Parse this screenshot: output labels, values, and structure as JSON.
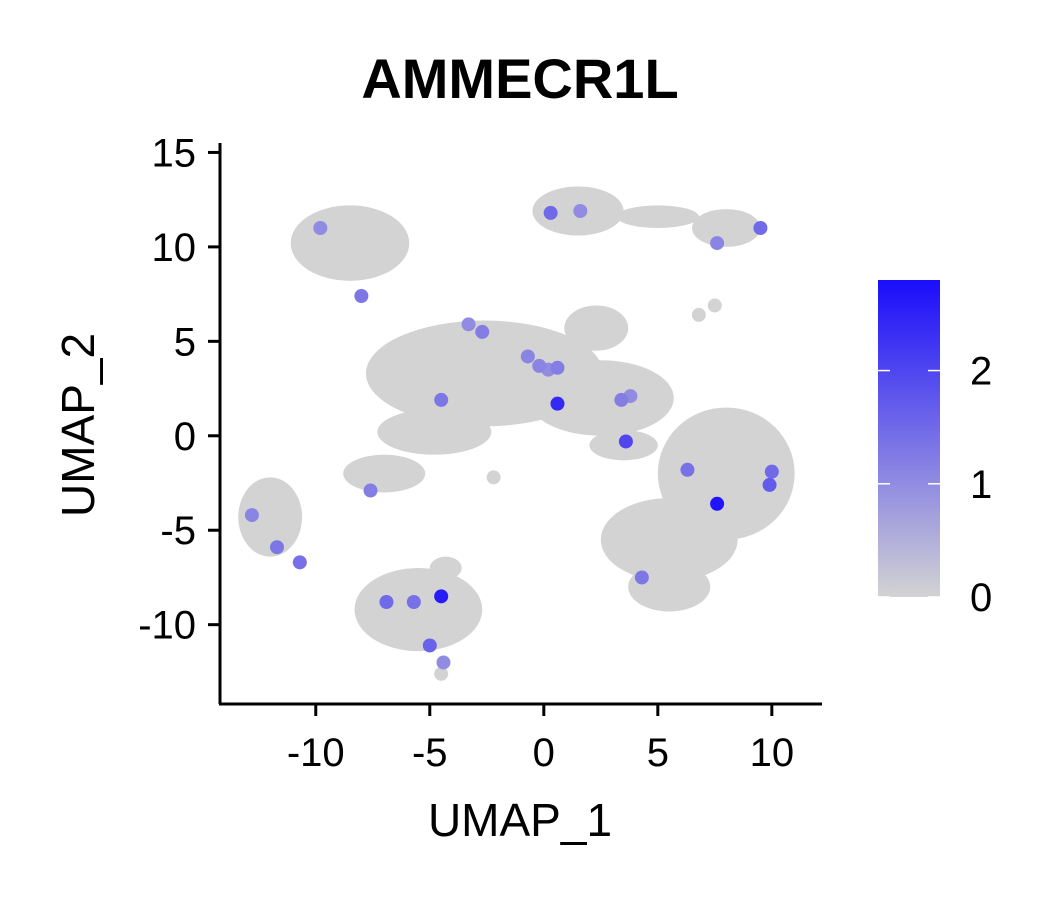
{
  "chart_data": {
    "type": "scatter",
    "title": "AMMECR1L",
    "xlabel": "UMAP_1",
    "ylabel": "UMAP_2",
    "xlim": [
      -14.2,
      12.2
    ],
    "ylim": [
      -14.2,
      15.5
    ],
    "xticks": [
      -10,
      -5,
      0,
      5,
      10
    ],
    "yticks": [
      15,
      10,
      5,
      0,
      -5,
      -10
    ],
    "grid": false,
    "legend": {
      "type": "colorbar",
      "placement": "right",
      "min": 0,
      "max": 2.8,
      "ticks": [
        0,
        1,
        2
      ],
      "low_color": "#D3D3D3",
      "high_color": "#1A0DFB"
    },
    "clusters": [
      {
        "cx": -8.5,
        "cy": 10.2,
        "rx": 2.6,
        "ry": 2.0
      },
      {
        "cx": 1.5,
        "cy": 11.9,
        "rx": 2.0,
        "ry": 1.3
      },
      {
        "cx": 5.0,
        "cy": 11.6,
        "rx": 1.8,
        "ry": 0.6
      },
      {
        "cx": 8.0,
        "cy": 11.0,
        "rx": 1.5,
        "ry": 1.0
      },
      {
        "cx": 2.3,
        "cy": 5.7,
        "rx": 1.4,
        "ry": 1.2
      },
      {
        "cx": -2.6,
        "cy": 3.3,
        "rx": 5.2,
        "ry": 2.8
      },
      {
        "cx": 2.5,
        "cy": 2.0,
        "rx": 3.2,
        "ry": 2.0
      },
      {
        "cx": -4.8,
        "cy": 0.2,
        "rx": 2.5,
        "ry": 1.2
      },
      {
        "cx": -7.0,
        "cy": -2.0,
        "rx": 1.8,
        "ry": 1.0
      },
      {
        "cx": 3.5,
        "cy": -0.5,
        "rx": 1.5,
        "ry": 0.8
      },
      {
        "cx": 8.0,
        "cy": -2.0,
        "rx": 3.0,
        "ry": 3.5
      },
      {
        "cx": 5.5,
        "cy": -5.5,
        "rx": 3.0,
        "ry": 2.2
      },
      {
        "cx": 5.5,
        "cy": -8.0,
        "rx": 1.8,
        "ry": 1.3
      },
      {
        "cx": -12.0,
        "cy": -4.3,
        "rx": 1.4,
        "ry": 2.1
      },
      {
        "cx": -5.5,
        "cy": -9.2,
        "rx": 2.8,
        "ry": 2.2
      },
      {
        "cx": -4.3,
        "cy": -7.0,
        "rx": 0.7,
        "ry": 0.6
      }
    ],
    "background_points": [
      {
        "x": 6.8,
        "y": 6.4,
        "value": 0
      },
      {
        "x": 7.5,
        "y": 6.9,
        "value": 0
      },
      {
        "x": -2.2,
        "y": -2.2,
        "value": 0
      },
      {
        "x": -4.5,
        "y": -12.6,
        "value": 0
      }
    ],
    "expressing_points": [
      {
        "x": -4.5,
        "y": 1.9,
        "value": 1.3
      },
      {
        "x": 0.6,
        "y": 1.7,
        "value": 2.4
      },
      {
        "x": -0.2,
        "y": 3.7,
        "value": 1.1
      },
      {
        "x": 0.6,
        "y": 3.6,
        "value": 1.2
      },
      {
        "x": 0.2,
        "y": 3.5,
        "value": 1.0
      },
      {
        "x": 3.4,
        "y": 1.9,
        "value": 1.2
      },
      {
        "x": 3.8,
        "y": 2.1,
        "value": 1.0
      },
      {
        "x": 3.6,
        "y": -0.3,
        "value": 2.0
      },
      {
        "x": -0.7,
        "y": 4.2,
        "value": 1.1
      },
      {
        "x": 7.6,
        "y": -3.6,
        "value": 2.7
      },
      {
        "x": 6.3,
        "y": -1.8,
        "value": 1.4
      },
      {
        "x": 9.9,
        "y": -2.6,
        "value": 1.7
      },
      {
        "x": 10.0,
        "y": -1.9,
        "value": 1.5
      },
      {
        "x": 4.3,
        "y": -7.5,
        "value": 1.3
      },
      {
        "x": -4.5,
        "y": -8.5,
        "value": 2.6
      },
      {
        "x": -5.7,
        "y": -8.8,
        "value": 1.4
      },
      {
        "x": -6.9,
        "y": -8.8,
        "value": 1.5
      },
      {
        "x": -5.0,
        "y": -11.1,
        "value": 1.6
      },
      {
        "x": -4.4,
        "y": -12.0,
        "value": 1.0
      },
      {
        "x": -11.7,
        "y": -5.9,
        "value": 1.3
      },
      {
        "x": -10.7,
        "y": -6.7,
        "value": 1.4
      },
      {
        "x": -12.8,
        "y": -4.2,
        "value": 1.1
      },
      {
        "x": -7.6,
        "y": -2.9,
        "value": 1.2
      },
      {
        "x": 0.3,
        "y": 11.8,
        "value": 1.5
      },
      {
        "x": 1.6,
        "y": 11.9,
        "value": 1.0
      },
      {
        "x": 9.5,
        "y": 11.0,
        "value": 1.5
      },
      {
        "x": 7.6,
        "y": 10.2,
        "value": 1.1
      },
      {
        "x": -8.0,
        "y": 7.4,
        "value": 1.3
      },
      {
        "x": -9.8,
        "y": 11.0,
        "value": 1.0
      },
      {
        "x": -2.7,
        "y": 5.5,
        "value": 1.2
      },
      {
        "x": -3.3,
        "y": 5.9,
        "value": 1.0
      }
    ]
  }
}
